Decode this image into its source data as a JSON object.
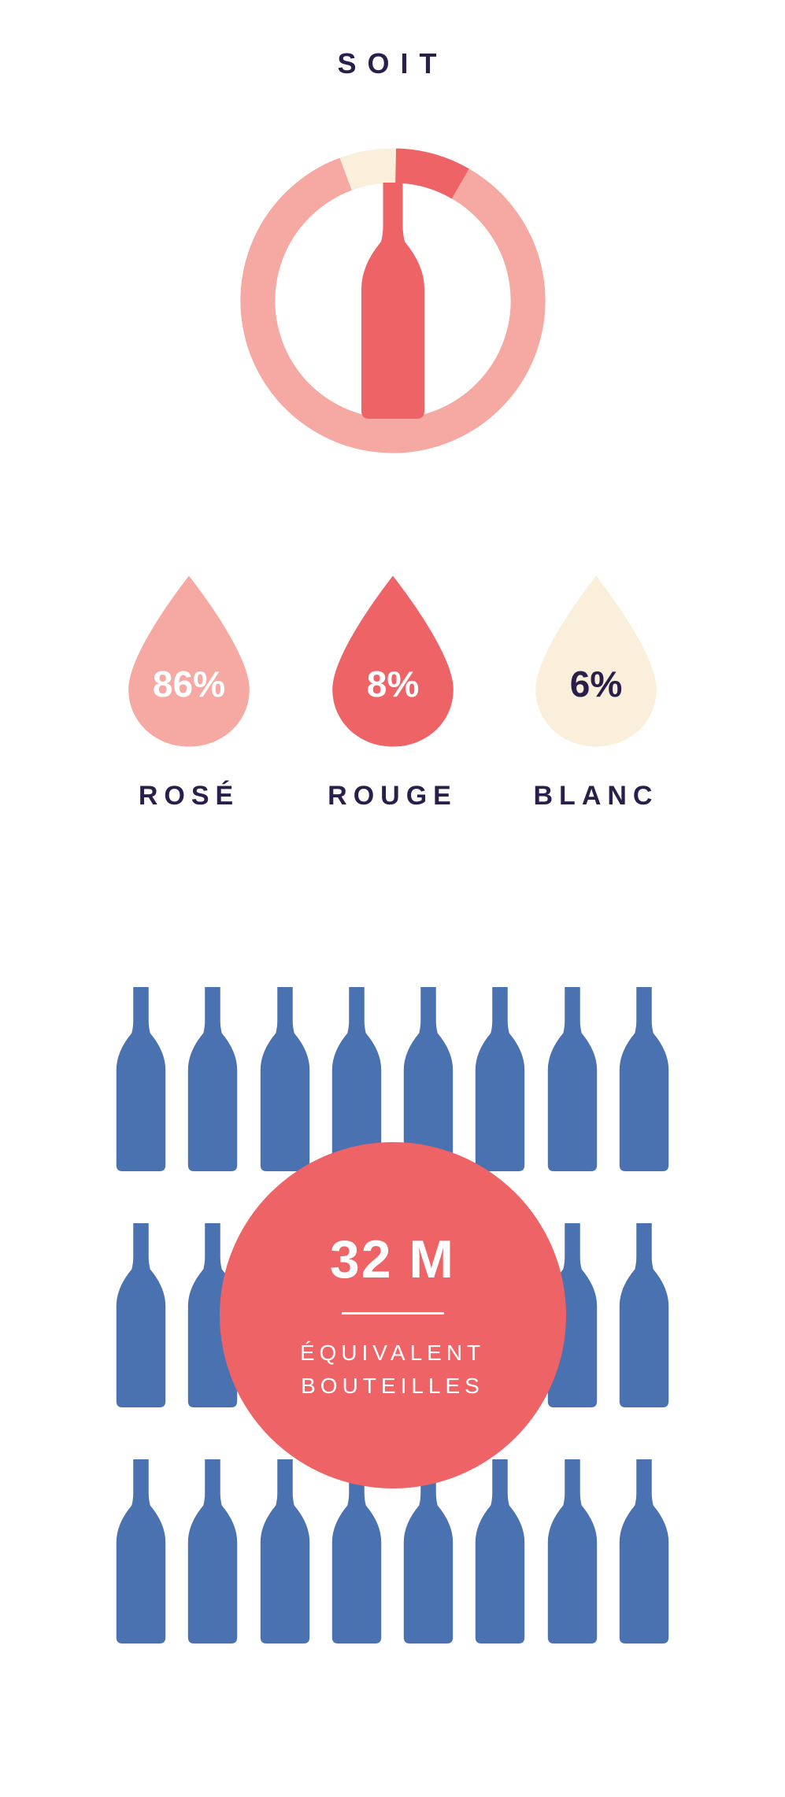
{
  "title": "SOIT",
  "colors": {
    "text": "#2a1e4a",
    "rose": "#f5a9a2",
    "rouge": "#ee6366",
    "blanc": "#f9efdb",
    "blue": "#4a71b0"
  },
  "donut": {
    "segments": [
      {
        "percent": 86,
        "color": "#f5a9a2"
      },
      {
        "percent": 6,
        "color": "#f9efdb"
      },
      {
        "percent": 8,
        "color": "#ee6366"
      }
    ],
    "bottle_color": "#ee6366",
    "stroke_width": 44
  },
  "drops": [
    {
      "percent": "86%",
      "label": "ROSÉ",
      "fill": "#f5a9a2",
      "text_color": "#ffffff"
    },
    {
      "percent": "8%",
      "label": "ROUGE",
      "fill": "#ee6366",
      "text_color": "#ffffff"
    },
    {
      "percent": "6%",
      "label": "BLANC",
      "fill": "#f9efdb",
      "text_color": "#2a1e4a"
    }
  ],
  "bottles_section": {
    "bottle_color": "#4a71b0",
    "rows": 3,
    "cols": 8,
    "circle_color": "#ee6366",
    "big_text": "32 M",
    "sub_line1": "ÉQUIVALENT",
    "sub_line2": "BOUTEILLES"
  }
}
